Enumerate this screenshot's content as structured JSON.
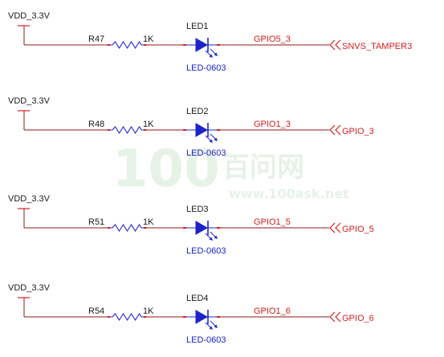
{
  "watermark": {
    "number": "100",
    "chinese": "百问网",
    "url": "www.100ask.net"
  },
  "circuits": [
    {
      "supply": "VDD_3.3V",
      "resistor": "R47",
      "resistance": "1K",
      "led": "LED1",
      "package": "LED-0603",
      "net": "GPIO5_3",
      "port": "SNVS_TAMPER3"
    },
    {
      "supply": "VDD_3.3V",
      "resistor": "R48",
      "resistance": "1K",
      "led": "LED2",
      "package": "LED-0603",
      "net": "GPIO1_3",
      "port": "GPIO_3"
    },
    {
      "supply": "VDD_3.3V",
      "resistor": "R51",
      "resistance": "1K",
      "led": "LED3",
      "package": "LED-0603",
      "net": "GPIO1_5",
      "port": "GPIO_5"
    },
    {
      "supply": "VDD_3.3V",
      "resistor": "R54",
      "resistance": "1K",
      "led": "LED4",
      "package": "LED-0603",
      "net": "GPIO1_6",
      "port": "GPIO_6"
    }
  ],
  "colors": {
    "wire": "#8b1a1a",
    "component": "#1c24c8",
    "net_label": "#d41e1e",
    "text": "#1a1a1a",
    "watermark": "#e6f2e6"
  }
}
